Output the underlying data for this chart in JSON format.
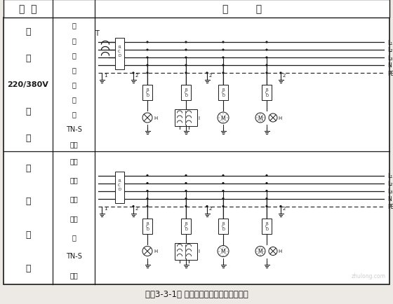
{
  "title": "图（3-3-1） 漏电保护器使用接线方法示意",
  "header_sys": "系  统",
  "header_wire": "接         线",
  "left_texts": [
    "三",
    "相",
    "220/380V",
    "接",
    "零",
    "保",
    "护",
    "系",
    "统"
  ],
  "top_sub": [
    "专",
    "用",
    "变",
    "压",
    "器",
    "供",
    "电",
    "TN-S",
    "系统"
  ],
  "bot_sub": [
    "三相",
    "四线",
    "制供",
    "电局",
    "部",
    "TN-S",
    "系统"
  ],
  "line_labels": [
    "L₁",
    "L₂",
    "L₃",
    "N",
    "PE"
  ],
  "bg": "#ede9e4",
  "lc": "#1a1a1a",
  "tc": "#1a1a1a",
  "watermark": "zhulong.com"
}
